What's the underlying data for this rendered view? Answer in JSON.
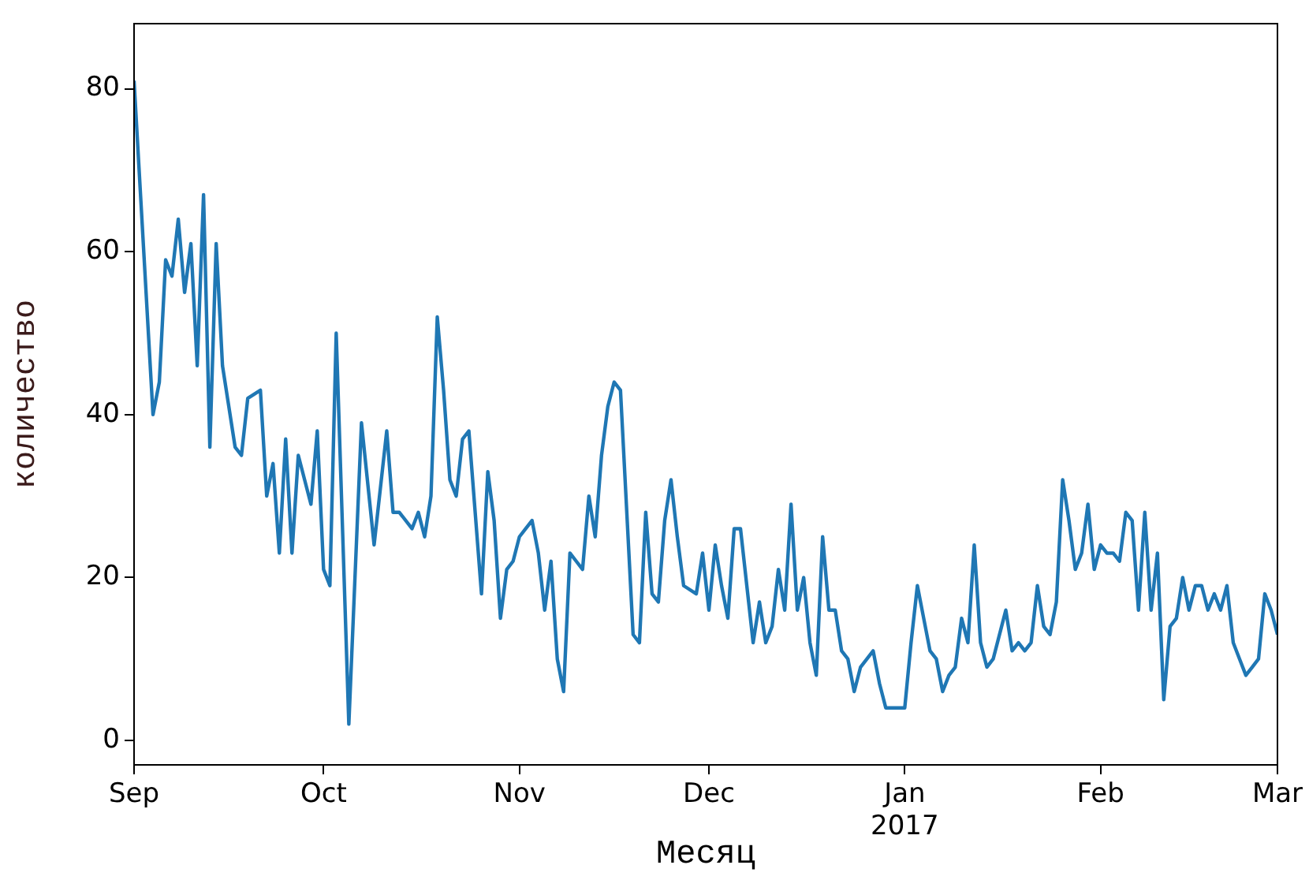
{
  "chart_data": {
    "type": "line",
    "xlabel": "Месяц",
    "ylabel": "количество",
    "xlim": [
      "2016-09-01",
      "2017-03-01"
    ],
    "xticks": [
      {
        "value": "2016-09-01",
        "label": "Sep"
      },
      {
        "value": "2016-10-01",
        "label": "Oct"
      },
      {
        "value": "2016-11-01",
        "label": "Nov"
      },
      {
        "value": "2016-12-01",
        "label": "Dec"
      },
      {
        "value": "2017-01-01",
        "label": "Jan\n2017"
      },
      {
        "value": "2017-02-01",
        "label": "Feb"
      },
      {
        "value": "2017-03-01",
        "label": "Mar"
      }
    ],
    "ylim": [
      -3,
      88
    ],
    "yticks": [
      0,
      20,
      40,
      60,
      80
    ],
    "grid": false,
    "legend": false,
    "series": [
      {
        "color": "#1f77b4",
        "x": [
          "2016-09-01",
          "2016-09-04",
          "2016-09-05",
          "2016-09-06",
          "2016-09-07",
          "2016-09-08",
          "2016-09-09",
          "2016-09-10",
          "2016-09-11",
          "2016-09-12",
          "2016-09-13",
          "2016-09-14",
          "2016-09-15",
          "2016-09-17",
          "2016-09-18",
          "2016-09-19",
          "2016-09-21",
          "2016-09-22",
          "2016-09-23",
          "2016-09-24",
          "2016-09-25",
          "2016-09-26",
          "2016-09-27",
          "2016-09-28",
          "2016-09-29",
          "2016-09-30",
          "2016-10-01",
          "2016-10-02",
          "2016-10-03",
          "2016-10-05",
          "2016-10-07",
          "2016-10-09",
          "2016-10-11",
          "2016-10-12",
          "2016-10-13",
          "2016-10-15",
          "2016-10-16",
          "2016-10-17",
          "2016-10-18",
          "2016-10-19",
          "2016-10-20",
          "2016-10-21",
          "2016-10-22",
          "2016-10-23",
          "2016-10-24",
          "2016-10-26",
          "2016-10-27",
          "2016-10-28",
          "2016-10-29",
          "2016-10-30",
          "2016-10-31",
          "2016-11-01",
          "2016-11-02",
          "2016-11-03",
          "2016-11-04",
          "2016-11-05",
          "2016-11-06",
          "2016-11-07",
          "2016-11-08",
          "2016-11-09",
          "2016-11-10",
          "2016-11-11",
          "2016-11-12",
          "2016-11-13",
          "2016-11-14",
          "2016-11-15",
          "2016-11-16",
          "2016-11-17",
          "2016-11-19",
          "2016-11-20",
          "2016-11-21",
          "2016-11-22",
          "2016-11-23",
          "2016-11-24",
          "2016-11-25",
          "2016-11-26",
          "2016-11-27",
          "2016-11-29",
          "2016-11-30",
          "2016-12-01",
          "2016-12-02",
          "2016-12-03",
          "2016-12-04",
          "2016-12-05",
          "2016-12-06",
          "2016-12-08",
          "2016-12-09",
          "2016-12-10",
          "2016-12-11",
          "2016-12-12",
          "2016-12-13",
          "2016-12-14",
          "2016-12-15",
          "2016-12-16",
          "2016-12-17",
          "2016-12-18",
          "2016-12-19",
          "2016-12-20",
          "2016-12-21",
          "2016-12-22",
          "2016-12-23",
          "2016-12-24",
          "2016-12-25",
          "2016-12-27",
          "2016-12-28",
          "2016-12-29",
          "2016-12-30",
          "2016-12-31",
          "2017-01-01",
          "2017-01-02",
          "2017-01-03",
          "2017-01-04",
          "2017-01-05",
          "2017-01-06",
          "2017-01-07",
          "2017-01-08",
          "2017-01-09",
          "2017-01-10",
          "2017-01-11",
          "2017-01-12",
          "2017-01-13",
          "2017-01-14",
          "2017-01-15",
          "2017-01-17",
          "2017-01-18",
          "2017-01-19",
          "2017-01-20",
          "2017-01-21",
          "2017-01-22",
          "2017-01-23",
          "2017-01-24",
          "2017-01-25",
          "2017-01-26",
          "2017-01-27",
          "2017-01-28",
          "2017-01-29",
          "2017-01-30",
          "2017-01-31",
          "2017-02-01",
          "2017-02-02",
          "2017-02-03",
          "2017-02-04",
          "2017-02-05",
          "2017-02-06",
          "2017-02-07",
          "2017-02-08",
          "2017-02-09",
          "2017-02-10",
          "2017-02-11",
          "2017-02-12",
          "2017-02-13",
          "2017-02-14",
          "2017-02-15",
          "2017-02-16",
          "2017-02-17",
          "2017-02-18",
          "2017-02-19",
          "2017-02-20",
          "2017-02-21",
          "2017-02-22",
          "2017-02-23",
          "2017-02-24",
          "2017-02-25",
          "2017-02-26",
          "2017-02-27",
          "2017-02-28",
          "2017-03-01"
        ],
        "values": [
          81,
          40,
          44,
          59,
          57,
          64,
          55,
          61,
          46,
          67,
          36,
          61,
          46,
          36,
          35,
          42,
          43,
          30,
          34,
          23,
          37,
          23,
          35,
          32,
          29,
          38,
          21,
          19,
          50,
          2,
          39,
          24,
          38,
          28,
          28,
          26,
          28,
          25,
          30,
          52,
          43,
          32,
          30,
          37,
          38,
          18,
          33,
          27,
          15,
          21,
          22,
          25,
          26,
          27,
          23,
          16,
          22,
          10,
          6,
          23,
          22,
          21,
          30,
          25,
          35,
          41,
          44,
          43,
          13,
          12,
          28,
          18,
          17,
          27,
          32,
          25,
          19,
          18,
          23,
          16,
          24,
          19,
          15,
          26,
          26,
          12,
          17,
          12,
          14,
          21,
          16,
          29,
          16,
          20,
          12,
          8,
          25,
          16,
          16,
          11,
          10,
          6,
          9,
          11,
          7,
          4,
          4,
          4,
          4,
          12,
          19,
          15,
          11,
          10,
          6,
          8,
          9,
          15,
          12,
          24,
          12,
          9,
          10,
          16,
          11,
          12,
          11,
          12,
          19,
          14,
          13,
          17,
          32,
          27,
          21,
          23,
          29,
          21,
          24,
          23,
          23,
          22,
          28,
          27,
          16,
          28,
          16,
          23,
          5,
          14,
          15,
          20,
          16,
          19,
          19,
          16,
          18,
          16,
          19,
          12,
          10,
          8,
          9,
          10,
          18,
          16,
          13
        ]
      }
    ]
  }
}
